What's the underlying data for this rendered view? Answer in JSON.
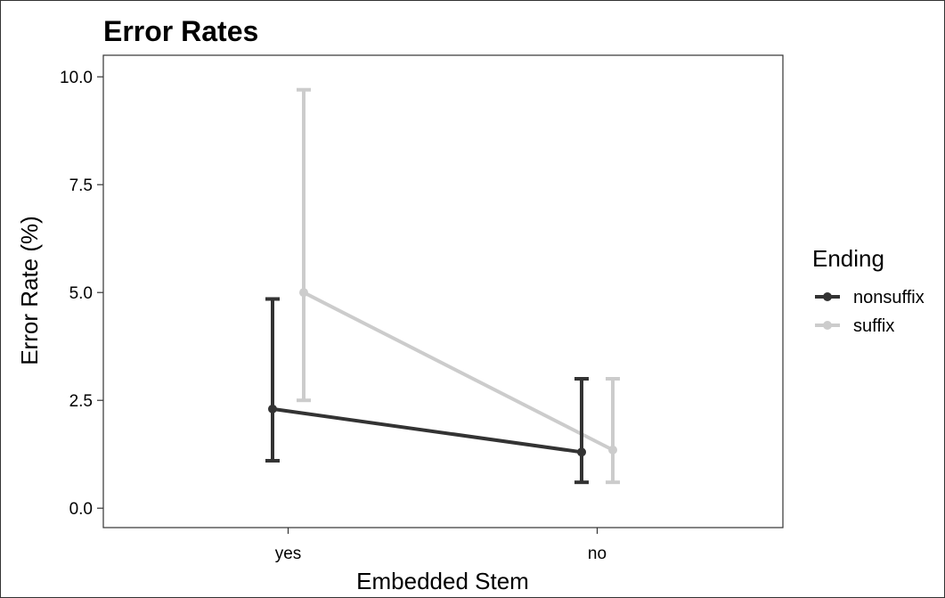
{
  "chart_data": {
    "type": "line",
    "title": "Error Rates",
    "xlabel": "Embedded Stem",
    "ylabel": "Error Rate (%)",
    "categories": [
      "yes",
      "no"
    ],
    "ylim": [
      -0.45,
      10.5
    ],
    "yticks": [
      "0.0",
      "2.5",
      "5.0",
      "7.5",
      "10.0"
    ],
    "grid": false,
    "legend": {
      "title": "Ending",
      "position": "right"
    },
    "series": [
      {
        "name": "nonsuffix",
        "color": "#333333",
        "values": [
          2.3,
          1.3
        ],
        "error_low": [
          1.1,
          0.6
        ],
        "error_high": [
          4.85,
          3.0
        ]
      },
      {
        "name": "suffix",
        "color": "#cccccc",
        "values": [
          5.0,
          1.35
        ],
        "error_low": [
          2.5,
          0.6
        ],
        "error_high": [
          9.7,
          3.0
        ]
      }
    ]
  }
}
